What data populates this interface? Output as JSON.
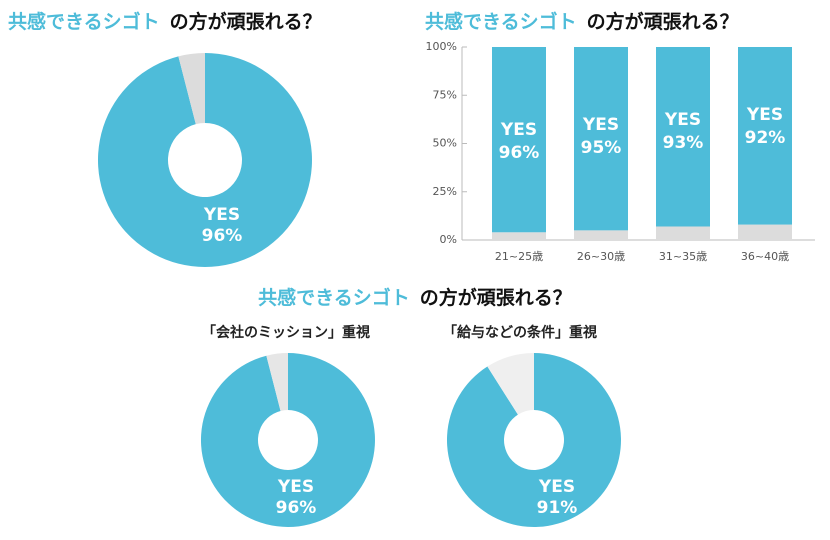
{
  "chart_data": [
    {
      "type": "pie",
      "title_highlight": "共感できるシゴト",
      "title": "の方が頑張れる？",
      "categories": [
        "YES",
        null
      ],
      "values": [
        96,
        4
      ],
      "value_labels": [
        "96%",
        null
      ],
      "colors": [
        "#4ebcd9",
        "#dcdcdc"
      ]
    },
    {
      "type": "bar",
      "title_highlight": "共感できるシゴト",
      "title": "の方が頑張れる？",
      "categories": [
        "21~25歳",
        "26~30歳",
        "31~35歳",
        "36~40歳"
      ],
      "series": [
        {
          "color": "#dcdcdc",
          "values": [
            4,
            5,
            7,
            8
          ]
        },
        {
          "name": "YES",
          "color": "#4ebcd9",
          "values": [
            96,
            95,
            93,
            92
          ],
          "value_labels": [
            "96%",
            "95%",
            "93%",
            "92%"
          ]
        }
      ],
      "stacked": true,
      "ylim": [
        0,
        100
      ],
      "yticks": [
        {
          "value": 0,
          "label": "0%"
        },
        {
          "value": 25,
          "label": "25%"
        },
        {
          "value": 50,
          "label": "50%"
        },
        {
          "value": 75,
          "label": "75%"
        },
        {
          "value": 100,
          "label": "100%"
        }
      ]
    },
    {
      "type": "pie",
      "title_highlight": "共感できるシゴト",
      "title": "の方が頑張れる？",
      "subtitle": "「会社のミッション」重視",
      "categories": [
        "YES",
        null
      ],
      "values": [
        96,
        4
      ],
      "value_labels": [
        "96%",
        null
      ],
      "colors": [
        "#4ebcd9",
        "#e6e6e6"
      ]
    },
    {
      "type": "pie",
      "subtitle": "「給与などの条件」重視",
      "categories": [
        "YES",
        null
      ],
      "values": [
        91,
        9
      ],
      "value_labels": [
        "91%",
        null
      ],
      "colors": [
        "#4ebcd9",
        "#efefef"
      ]
    }
  ]
}
